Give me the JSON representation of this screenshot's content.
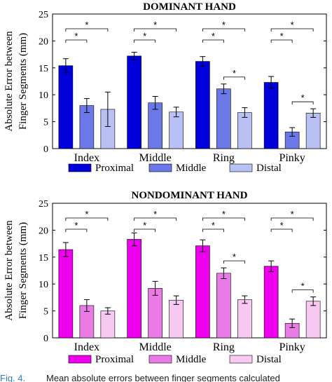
{
  "figure": {
    "caption_label": "Fig. 4.",
    "caption_text": "Mean absolute errors between finger segments calculated"
  },
  "chart_data": [
    {
      "type": "bar",
      "title": "DOMINANT HAND",
      "ylabel_line1": "Absolute Error between",
      "ylabel_line2": "Finger Segments (mm)",
      "ylim": [
        0,
        25
      ],
      "yticks": [
        0,
        5,
        10,
        15,
        20,
        25
      ],
      "categories": [
        "Index",
        "Middle",
        "Ring",
        "Pinky"
      ],
      "series": [
        {
          "name": "Proximal",
          "color": "#0000dd",
          "values": [
            15.4,
            17.2,
            16.2,
            12.3
          ],
          "errors": [
            1.3,
            0.7,
            0.9,
            1.1
          ]
        },
        {
          "name": "Middle",
          "color": "#6b78e8",
          "values": [
            8.0,
            8.5,
            11.1,
            3.1
          ],
          "errors": [
            1.3,
            1.2,
            0.9,
            0.8
          ]
        },
        {
          "name": "Distal",
          "color": "#b8c0f4",
          "values": [
            7.3,
            6.8,
            6.7,
            6.6
          ],
          "errors": [
            3.2,
            0.9,
            0.9,
            0.8
          ]
        }
      ],
      "significance": [
        {
          "category": 0,
          "from": 0,
          "to": 2,
          "label": "*"
        },
        {
          "category": 0,
          "from": 0,
          "to": 1,
          "label": "*"
        },
        {
          "category": 1,
          "from": 0,
          "to": 2,
          "label": "*"
        },
        {
          "category": 1,
          "from": 0,
          "to": 1,
          "label": "*"
        },
        {
          "category": 2,
          "from": 0,
          "to": 2,
          "label": "*"
        },
        {
          "category": 2,
          "from": 0,
          "to": 1,
          "label": "*"
        },
        {
          "category": 2,
          "from": 1,
          "to": 2,
          "label": "*"
        },
        {
          "category": 3,
          "from": 0,
          "to": 2,
          "label": "*"
        },
        {
          "category": 3,
          "from": 0,
          "to": 1,
          "label": "*"
        },
        {
          "category": 3,
          "from": 1,
          "to": 2,
          "label": "*"
        }
      ]
    },
    {
      "type": "bar",
      "title": "NONDOMINANT HAND",
      "ylabel_line1": "Absolute Error between",
      "ylabel_line2": "Finger Segments (mm)",
      "ylim": [
        0,
        25
      ],
      "yticks": [
        0,
        5,
        10,
        15,
        20,
        25
      ],
      "categories": [
        "Index",
        "Middle",
        "Ring",
        "Pinky"
      ],
      "series": [
        {
          "name": "Proximal",
          "color": "#ee00ee",
          "values": [
            16.4,
            18.3,
            17.1,
            13.3
          ],
          "errors": [
            1.3,
            1.2,
            1.1,
            1.0
          ]
        },
        {
          "name": "Middle",
          "color": "#ea7ae6",
          "values": [
            6.0,
            9.2,
            12.0,
            2.7
          ],
          "errors": [
            1.1,
            1.3,
            1.0,
            0.8
          ]
        },
        {
          "name": "Distal",
          "color": "#f6c8f2",
          "values": [
            5.0,
            7.0,
            7.1,
            6.8
          ],
          "errors": [
            0.6,
            0.8,
            0.7,
            0.8
          ]
        }
      ],
      "significance": [
        {
          "category": 0,
          "from": 0,
          "to": 2,
          "label": "*"
        },
        {
          "category": 0,
          "from": 0,
          "to": 1,
          "label": "*"
        },
        {
          "category": 1,
          "from": 0,
          "to": 2,
          "label": "*"
        },
        {
          "category": 1,
          "from": 0,
          "to": 1,
          "label": "*"
        },
        {
          "category": 2,
          "from": 0,
          "to": 2,
          "label": "*"
        },
        {
          "category": 2,
          "from": 0,
          "to": 1,
          "label": "*"
        },
        {
          "category": 2,
          "from": 1,
          "to": 2,
          "label": "*"
        },
        {
          "category": 3,
          "from": 0,
          "to": 2,
          "label": "*"
        },
        {
          "category": 3,
          "from": 0,
          "to": 1,
          "label": "*"
        },
        {
          "category": 3,
          "from": 1,
          "to": 2,
          "label": "*"
        }
      ]
    }
  ]
}
